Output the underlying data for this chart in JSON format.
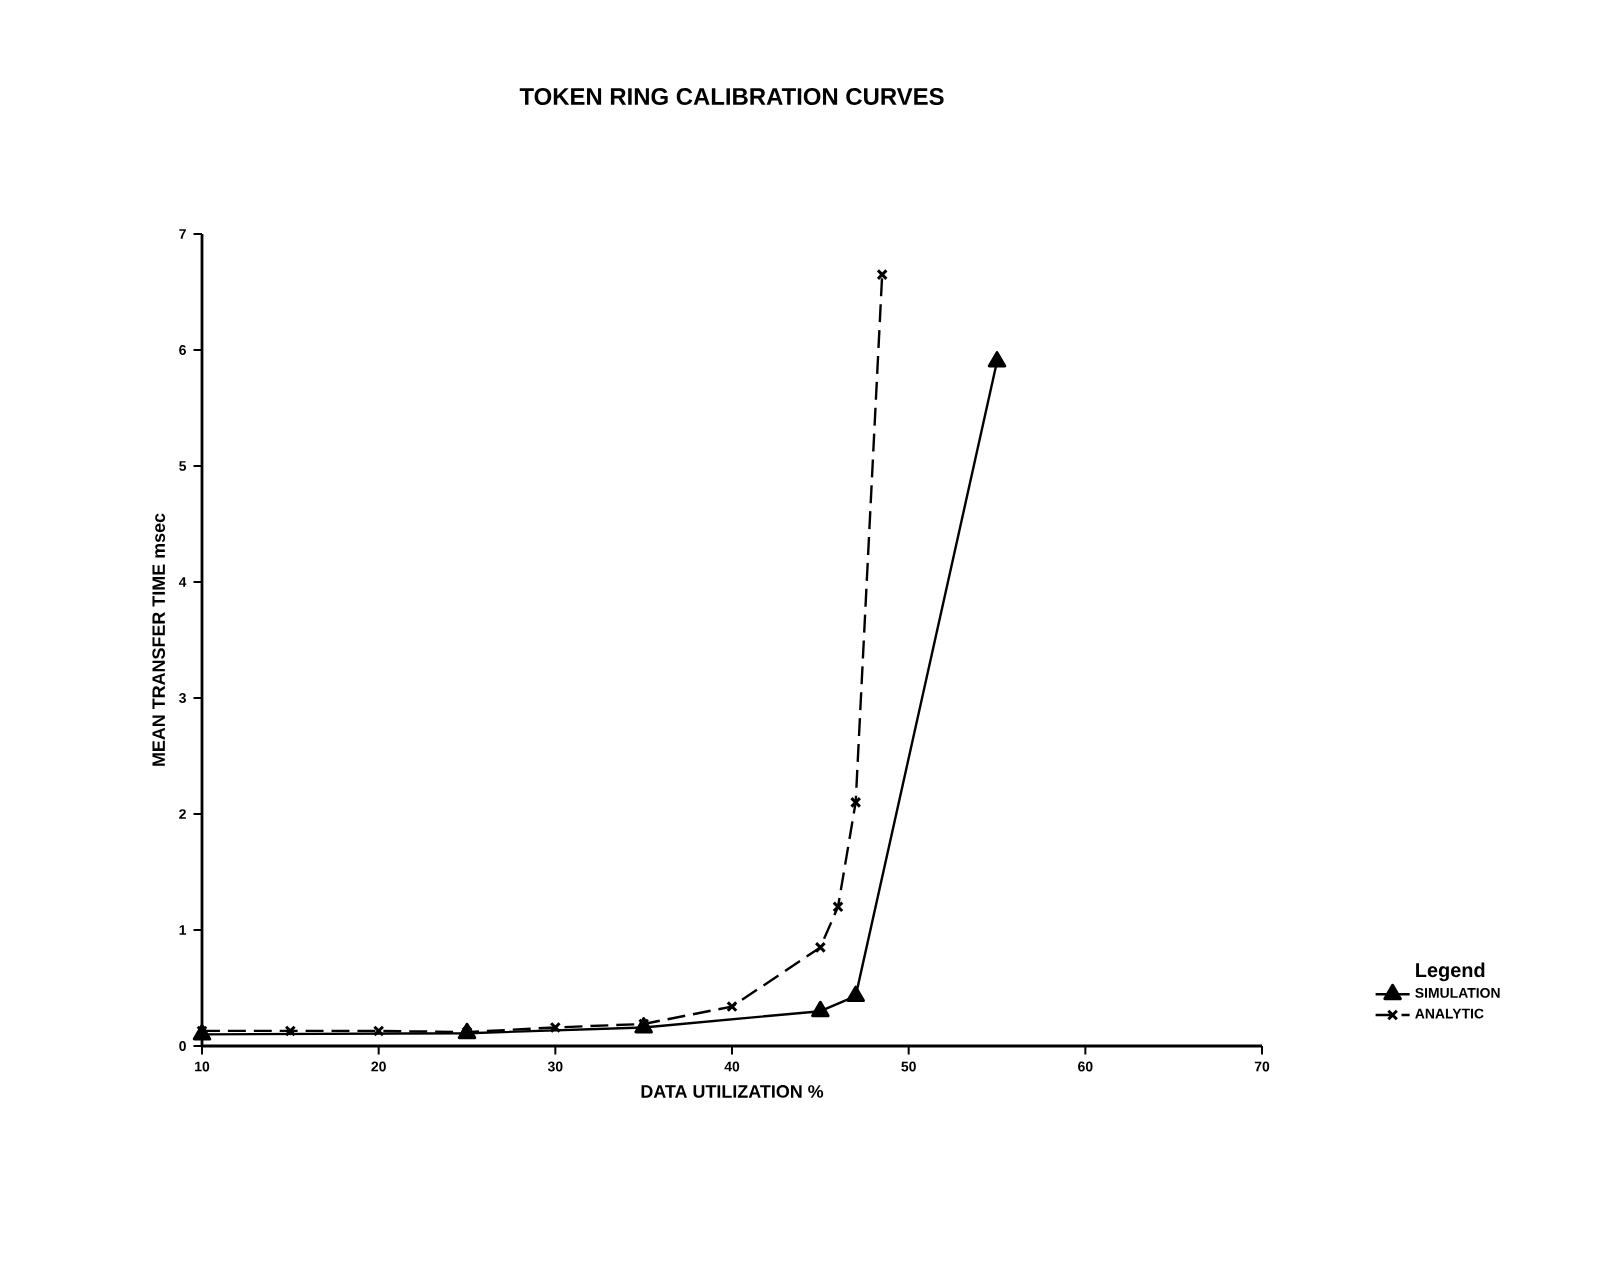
{
  "chart_data": {
    "type": "line",
    "title": "TOKEN RING CALIBRATION CURVES",
    "xlabel": "DATA UTILIZATION %",
    "ylabel": "MEAN TRANSFER TIME msec",
    "legend_title": "Legend",
    "legend": "bottom right",
    "grid": false,
    "xlim": [
      10,
      70
    ],
    "xticks": [
      10,
      20,
      30,
      40,
      50,
      60,
      70
    ],
    "ylim": [
      0,
      7
    ],
    "yticks": [
      0,
      1,
      2,
      3,
      4,
      5,
      6,
      7
    ],
    "series": [
      {
        "name": "SIMULATION",
        "color": "#000000",
        "marker": "triangle",
        "line_style": "solid",
        "x": [
          10,
          25,
          35,
          45,
          47,
          55
        ],
        "values": [
          0.1,
          0.11,
          0.16,
          0.3,
          0.43,
          5.9
        ]
      },
      {
        "name": "ANALYTIC",
        "color": "#000000",
        "marker": "cross",
        "line_style": "dashed",
        "x": [
          10,
          15,
          20,
          25,
          30,
          35,
          40,
          45,
          46,
          47,
          48.5
        ],
        "values": [
          0.13,
          0.13,
          0.13,
          0.12,
          0.16,
          0.19,
          0.34,
          0.85,
          1.2,
          2.1,
          6.65
        ]
      }
    ]
  }
}
